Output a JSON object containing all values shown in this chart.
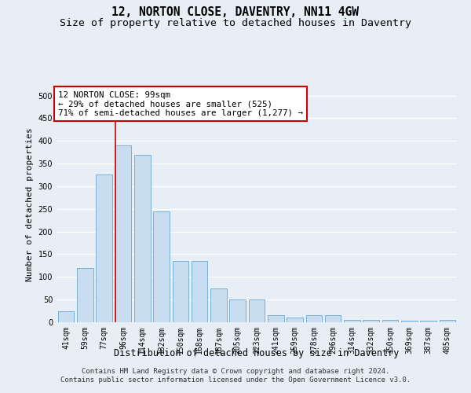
{
  "title": "12, NORTON CLOSE, DAVENTRY, NN11 4GW",
  "subtitle": "Size of property relative to detached houses in Daventry",
  "xlabel": "Distribution of detached houses by size in Daventry",
  "ylabel": "Number of detached properties",
  "categories": [
    "41sqm",
    "59sqm",
    "77sqm",
    "96sqm",
    "114sqm",
    "132sqm",
    "150sqm",
    "168sqm",
    "187sqm",
    "205sqm",
    "223sqm",
    "241sqm",
    "259sqm",
    "278sqm",
    "296sqm",
    "314sqm",
    "332sqm",
    "350sqm",
    "369sqm",
    "387sqm",
    "405sqm"
  ],
  "values": [
    25,
    120,
    325,
    390,
    370,
    245,
    135,
    135,
    75,
    50,
    50,
    15,
    10,
    15,
    15,
    5,
    5,
    5,
    3,
    3,
    5
  ],
  "bar_color": "#c9ddf0",
  "bar_edge_color": "#7bafd4",
  "vline_x_index": 3,
  "annotation_text_line1": "12 NORTON CLOSE: 99sqm",
  "annotation_text_line2": "← 29% of detached houses are smaller (525)",
  "annotation_text_line3": "71% of semi-detached houses are larger (1,277) →",
  "annotation_box_facecolor": "#ffffff",
  "annotation_box_edgecolor": "#cc0000",
  "vline_color": "#cc0000",
  "ylim": [
    0,
    520
  ],
  "yticks": [
    0,
    50,
    100,
    150,
    200,
    250,
    300,
    350,
    400,
    450,
    500
  ],
  "footer_line1": "Contains HM Land Registry data © Crown copyright and database right 2024.",
  "footer_line2": "Contains public sector information licensed under the Open Government Licence v3.0.",
  "bg_color": "#e8eef5",
  "plot_bg_color": "#e8eef5",
  "grid_color": "#ffffff",
  "title_fontsize": 10.5,
  "subtitle_fontsize": 9.5,
  "xlabel_fontsize": 8.5,
  "ylabel_fontsize": 8,
  "tick_fontsize": 7,
  "annotation_fontsize": 7.8,
  "footer_fontsize": 6.5
}
